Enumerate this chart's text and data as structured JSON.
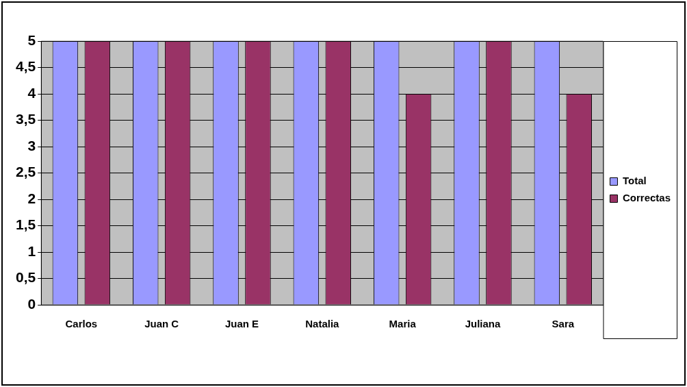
{
  "chart_data": {
    "type": "bar",
    "categories": [
      "Carlos",
      "Juan C",
      "Juan E",
      "Natalia",
      "Maria",
      "Juliana",
      "Sara"
    ],
    "series": [
      {
        "name": "Total",
        "color": "#9999ff",
        "values": [
          5,
          5,
          5,
          5,
          5,
          5,
          5
        ]
      },
      {
        "name": "Correctas",
        "color": "#993366",
        "values": [
          5,
          5,
          5,
          5,
          4,
          5,
          4
        ]
      }
    ],
    "ylim": [
      0,
      5
    ],
    "yticks": [
      0,
      {
        "value": 0.5,
        "label": "0,5"
      },
      1,
      {
        "value": 1.5,
        "label": "1,5"
      },
      2,
      {
        "value": 2.5,
        "label": "2,5"
      },
      3,
      {
        "value": 3.5,
        "label": "3,5"
      },
      4,
      {
        "value": 4.5,
        "label": "4,5"
      },
      5
    ],
    "grid": "y",
    "legend": "right"
  }
}
